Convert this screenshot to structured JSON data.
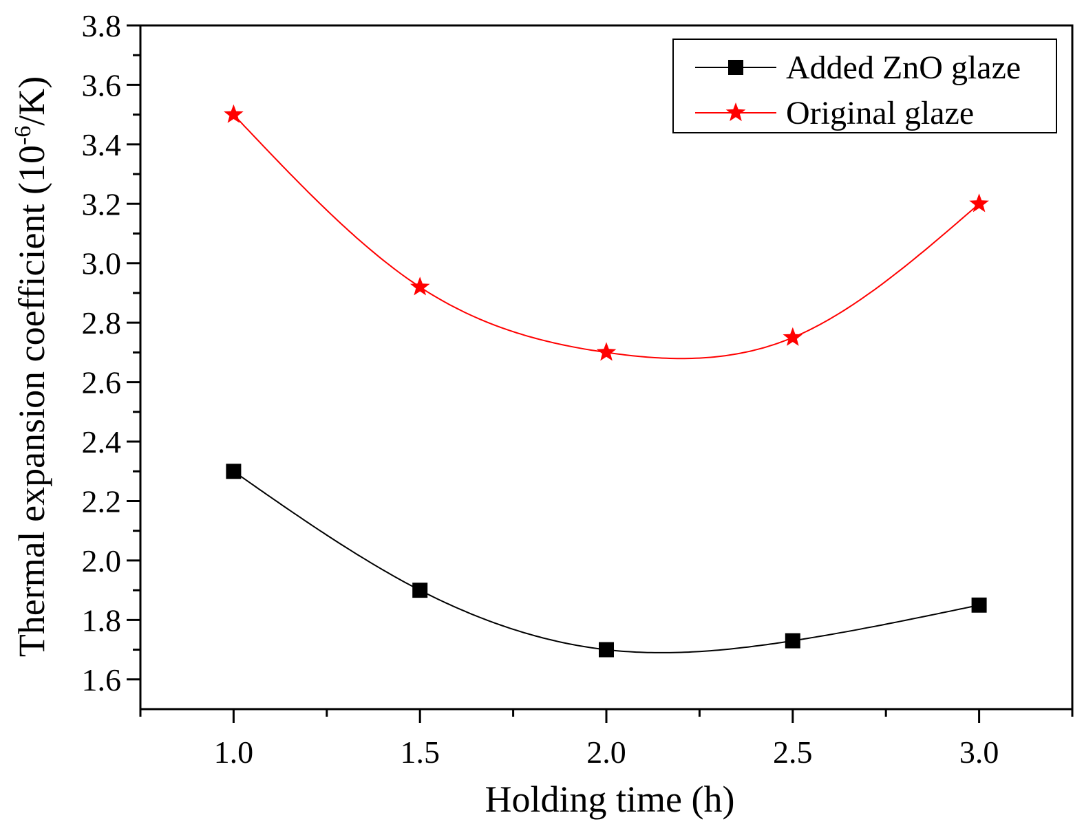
{
  "chart_data": {
    "type": "line",
    "title": "",
    "xlabel": "Holding time (h)",
    "ylabel": "Thermal expansion coefficient (10",
    "ylabel_sup": "-6",
    "ylabel_tail": "/K)",
    "xlim": [
      0.75,
      3.25
    ],
    "ylim": [
      1.5,
      3.8
    ],
    "x_ticks": [
      "1.0",
      "1.5",
      "2.0",
      "2.5",
      "3.0"
    ],
    "y_ticks": [
      "1.6",
      "1.8",
      "2.0",
      "2.2",
      "2.4",
      "2.6",
      "2.8",
      "3.0",
      "3.2",
      "3.4",
      "3.6",
      "3.8"
    ],
    "grid": false,
    "legend_position": "top-right",
    "x": [
      1.0,
      1.5,
      2.0,
      2.5,
      3.0
    ],
    "series": [
      {
        "name": "Added ZnO glaze",
        "values": [
          2.3,
          1.9,
          1.7,
          1.73,
          1.85
        ],
        "color": "#000000",
        "marker": "square"
      },
      {
        "name": "Original glaze",
        "values": [
          3.5,
          2.92,
          2.7,
          2.75,
          3.2
        ],
        "color": "#ff0000",
        "marker": "star"
      }
    ]
  }
}
